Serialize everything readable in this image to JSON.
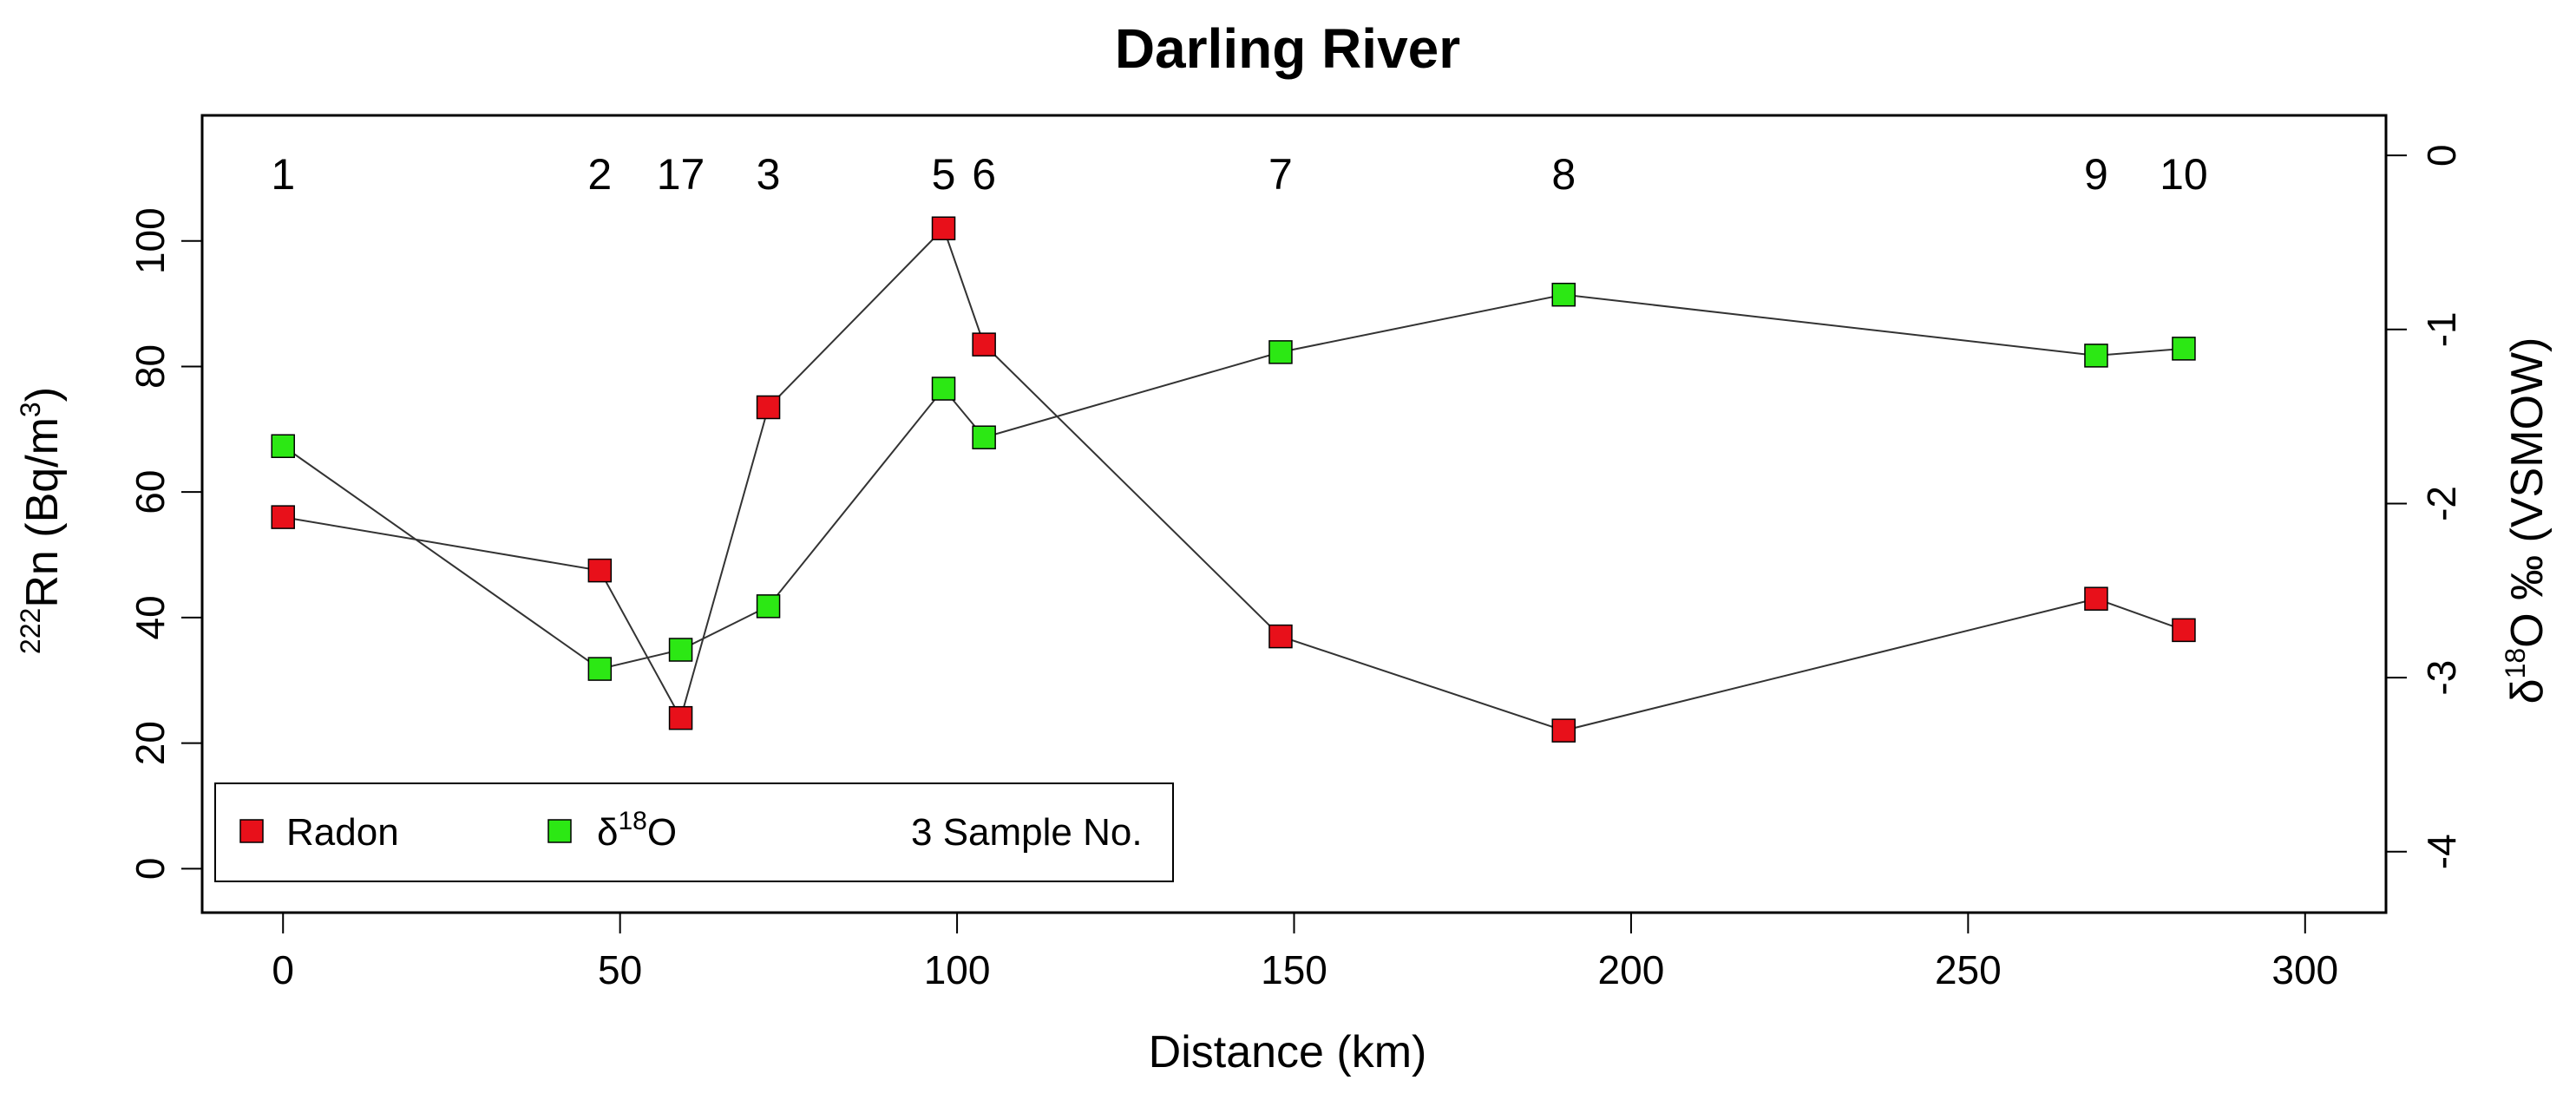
{
  "chart_data": {
    "type": "line",
    "title": "Darling River",
    "xlabel": "Distance (km)",
    "ylabel": {
      "sup": "222",
      "main": "Rn (Bq/m",
      "sup2": "3",
      "end": ")"
    },
    "y2label": {
      "pre": "δ",
      "sup": "18",
      "main": "O ‰ (VSMOW)"
    },
    "xlim": [
      -12,
      312
    ],
    "ylim": [
      -7,
      120
    ],
    "y2lim": [
      -4.35,
      0.23
    ],
    "xticks": [
      0,
      50,
      100,
      150,
      200,
      250,
      300
    ],
    "yticks": [
      0,
      20,
      40,
      60,
      80,
      100
    ],
    "y2ticks": [
      0,
      -1,
      -2,
      -3,
      -4
    ],
    "series": [
      {
        "name": "Radon",
        "axis": "left",
        "color": "#e8101a",
        "x": [
          0,
          47,
          59,
          72,
          98,
          104,
          148,
          190,
          269,
          282
        ],
        "values": [
          56,
          47.5,
          24,
          73.5,
          102,
          83.5,
          37,
          22,
          43,
          38
        ]
      },
      {
        "name": "δ18O",
        "name_parts": {
          "pre": "δ",
          "sup": "18",
          "main": "O"
        },
        "axis": "right",
        "color": "#2ce814",
        "x": [
          0,
          47,
          59,
          72,
          98,
          104,
          148,
          190,
          269,
          282
        ],
        "values": [
          -1.67,
          -2.95,
          -2.84,
          -2.59,
          -1.34,
          -1.62,
          -1.13,
          -0.8,
          -1.15,
          -1.11
        ]
      }
    ],
    "sample_labels": [
      {
        "x": 0,
        "label": "1"
      },
      {
        "x": 47,
        "label": "2"
      },
      {
        "x": 59,
        "label": "17"
      },
      {
        "x": 72,
        "label": "3"
      },
      {
        "x": 98,
        "label": "5"
      },
      {
        "x": 104,
        "label": "6"
      },
      {
        "x": 148,
        "label": "7"
      },
      {
        "x": 190,
        "label": "8"
      },
      {
        "x": 269,
        "label": "9"
      },
      {
        "x": 282,
        "label": "10"
      }
    ],
    "legend": {
      "position": "bottom-left",
      "entries": [
        "Radon",
        "δ18O",
        "3 Sample No."
      ],
      "sample_entry": "3 Sample No."
    },
    "grid": false
  }
}
